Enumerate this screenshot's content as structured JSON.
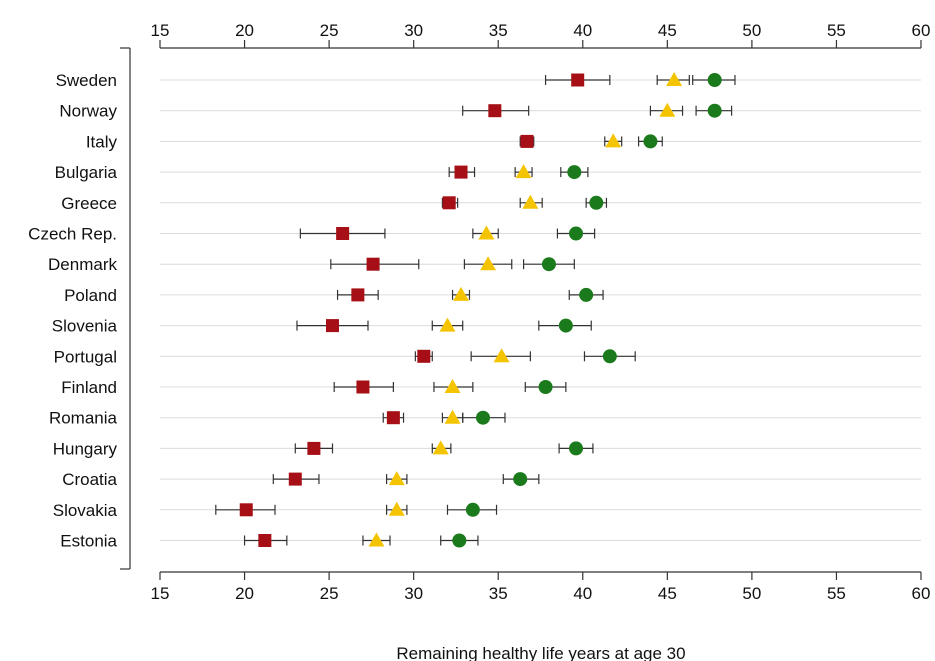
{
  "chart_data": {
    "type": "scatter",
    "xlabel": "Remaining healthy life years at age 30",
    "xlim": [
      15,
      60
    ],
    "xticks": [
      15,
      20,
      25,
      30,
      35,
      40,
      45,
      50,
      55,
      60
    ],
    "categories": [
      "Sweden",
      "Norway",
      "Italy",
      "Bulgaria",
      "Greece",
      "Czech Rep.",
      "Denmark",
      "Poland",
      "Slovenia",
      "Portugal",
      "Finland",
      "Romania",
      "Hungary",
      "Croatia",
      "Slovakia",
      "Estonia"
    ],
    "grid": "horizontal",
    "legend": "none",
    "series": [
      {
        "marker": "square",
        "color": "#a50f15",
        "values": [
          39.7,
          34.8,
          36.7,
          32.8,
          32.1,
          25.8,
          27.6,
          26.7,
          25.2,
          30.6,
          27.0,
          28.8,
          24.1,
          23.0,
          20.1,
          21.2
        ],
        "ci_low": [
          37.8,
          32.9,
          36.3,
          32.1,
          31.7,
          23.3,
          25.1,
          25.5,
          23.1,
          30.1,
          25.3,
          28.2,
          23.0,
          21.7,
          18.3,
          20.0
        ],
        "ci_high": [
          41.6,
          36.8,
          37.1,
          33.6,
          32.6,
          28.3,
          30.3,
          27.9,
          27.3,
          31.1,
          28.8,
          29.4,
          25.2,
          24.4,
          21.8,
          22.5
        ]
      },
      {
        "marker": "triangle",
        "color": "#f5c400",
        "values": [
          45.4,
          45.0,
          41.8,
          36.5,
          36.9,
          34.3,
          34.4,
          32.8,
          32.0,
          35.2,
          32.3,
          32.3,
          31.6,
          29.0,
          29.0,
          27.8
        ],
        "ci_low": [
          44.4,
          44.0,
          41.3,
          36.0,
          36.3,
          33.5,
          33.0,
          32.3,
          31.1,
          33.4,
          31.2,
          31.7,
          31.1,
          28.4,
          28.4,
          27.0
        ],
        "ci_high": [
          46.3,
          45.9,
          42.3,
          37.0,
          37.6,
          35.0,
          35.8,
          33.3,
          32.9,
          36.9,
          33.5,
          32.9,
          32.2,
          29.6,
          29.6,
          28.6
        ]
      },
      {
        "marker": "circle",
        "color": "#1b7a1b",
        "values": [
          47.8,
          47.8,
          44.0,
          39.5,
          40.8,
          39.6,
          38.0,
          40.2,
          39.0,
          41.6,
          37.8,
          34.1,
          39.6,
          36.3,
          33.5,
          32.7
        ],
        "ci_low": [
          46.5,
          46.7,
          43.3,
          38.7,
          40.2,
          38.5,
          36.5,
          39.2,
          37.4,
          40.1,
          36.6,
          32.9,
          38.6,
          35.3,
          32.0,
          31.6
        ],
        "ci_high": [
          49.0,
          48.8,
          44.7,
          40.3,
          41.4,
          40.7,
          39.5,
          41.2,
          40.5,
          43.1,
          39.0,
          35.4,
          40.6,
          37.4,
          34.9,
          33.8
        ]
      }
    ]
  }
}
